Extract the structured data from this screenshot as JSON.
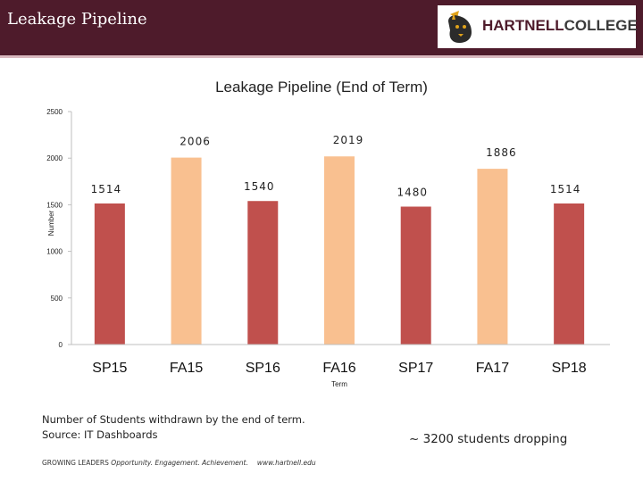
{
  "header": {
    "title": "Leakage Pipeline",
    "logo_text_1": "HARTNELL",
    "logo_text_2": "COLLEGE",
    "background_color": "#4e1b2b"
  },
  "chart_data": {
    "type": "bar",
    "title": "Leakage Pipeline (End of Term)",
    "xlabel": "Term",
    "ylabel": "Number",
    "categories": [
      "SP15",
      "FA15",
      "SP16",
      "FA16",
      "SP17",
      "FA17",
      "SP18"
    ],
    "values": [
      1514,
      2006,
      1540,
      2019,
      1480,
      1886,
      1514
    ],
    "colors": [
      "#c0504d",
      "#f9c090",
      "#c0504d",
      "#f9c090",
      "#c0504d",
      "#f9c090",
      "#c0504d"
    ],
    "yticks": [
      "0",
      "500",
      "1000",
      "1500",
      "2000",
      "2500"
    ],
    "ylim": [
      0,
      2500
    ],
    "grid": false,
    "legend": "none"
  },
  "notes": {
    "line1": "Number of Students withdrawn by the end of term.",
    "line2": "Source: IT Dashboards"
  },
  "summary": "~ 3200 students dropping",
  "footer": {
    "lead": "GROWING LEADERS",
    "tagline": "Opportunity. Engagement. Achievement.",
    "url": "www.hartnell.edu"
  }
}
